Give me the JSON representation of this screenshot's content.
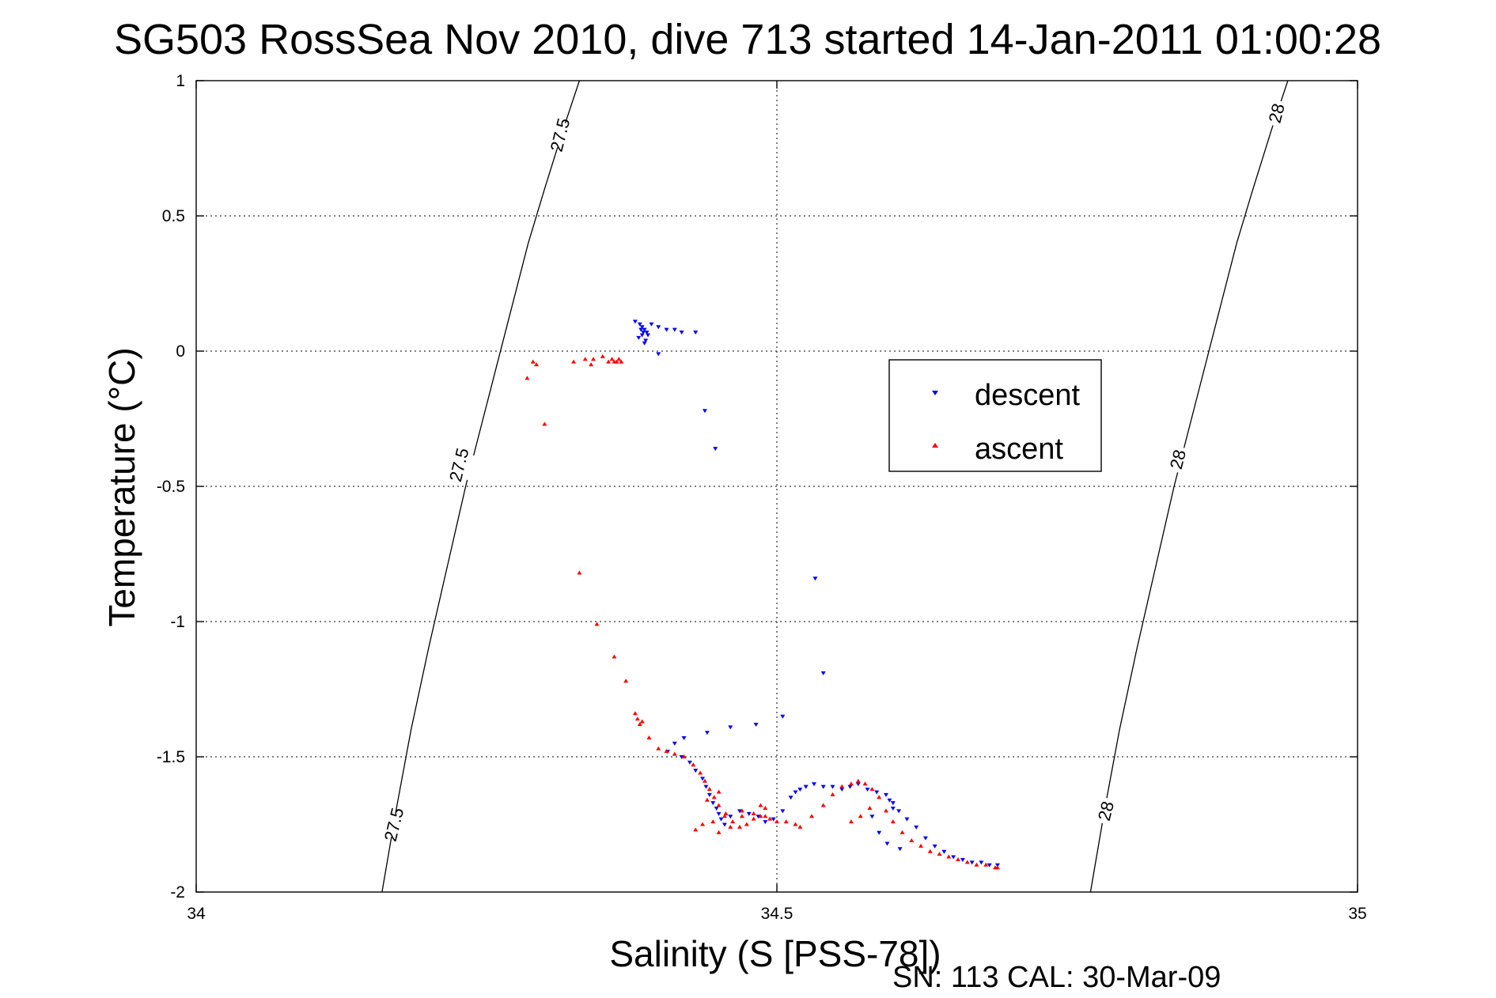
{
  "chart_data": {
    "type": "scatter",
    "title": "SG503 RossSea Nov 2010, dive 713 started 14-Jan-2011 01:00:28",
    "xlabel": "Salinity (S [PSS-78])",
    "ylabel": "Temperature (°C)",
    "footnote": "SN: 113  CAL: 30-Mar-09",
    "xlim": [
      34,
      35
    ],
    "ylim": [
      -2,
      1
    ],
    "xticks": [
      34,
      34.5,
      35
    ],
    "xtick_labels": [
      "34",
      "34.5",
      "35"
    ],
    "yticks": [
      1,
      0.5,
      0,
      -0.5,
      -1,
      -1.5,
      -2
    ],
    "ytick_labels": [
      "1",
      "0.5",
      "0",
      "-0.5",
      "-1",
      "-1.5",
      "-2"
    ],
    "grid": true,
    "legend_position": "center-right",
    "series": [
      {
        "name": "descent",
        "color": "#0000ff",
        "marker": "triangle-down",
        "x": [
          34.378,
          34.382,
          34.384,
          34.386,
          34.388,
          34.384,
          34.381,
          34.385,
          34.389,
          34.387,
          34.383,
          34.386,
          34.392,
          34.398,
          34.405,
          34.412,
          34.418,
          34.43,
          34.398,
          34.438,
          34.447,
          34.505,
          34.533,
          34.54,
          34.482,
          34.46,
          34.44,
          34.42,
          34.412,
          34.406,
          34.418,
          34.425,
          34.43,
          34.436,
          34.439,
          34.442,
          34.445,
          34.448,
          34.45,
          34.452,
          34.455,
          34.46,
          34.468,
          34.476,
          34.484,
          34.49,
          34.497,
          34.505,
          34.512,
          34.516,
          34.52,
          34.525,
          34.532,
          34.54,
          34.548,
          34.556,
          34.563,
          34.57,
          34.578,
          34.586,
          34.594,
          34.6,
          34.605,
          34.612,
          34.62,
          34.628,
          34.636,
          34.644,
          34.652,
          34.66,
          34.668,
          34.676,
          34.683,
          34.69,
          34.597,
          34.6,
          34.582,
          34.588,
          34.595,
          34.606
        ],
        "y": [
          0.11,
          0.1,
          0.09,
          0.08,
          0.07,
          0.06,
          0.05,
          0.07,
          0.06,
          0.04,
          0.08,
          0.03,
          0.1,
          0.09,
          0.08,
          0.08,
          0.07,
          0.07,
          -0.01,
          -0.22,
          -0.36,
          -1.35,
          -0.84,
          -1.19,
          -1.38,
          -1.39,
          -1.41,
          -1.43,
          -1.45,
          -1.48,
          -1.5,
          -1.52,
          -1.55,
          -1.58,
          -1.61,
          -1.64,
          -1.67,
          -1.69,
          -1.71,
          -1.73,
          -1.75,
          -1.72,
          -1.7,
          -1.71,
          -1.72,
          -1.74,
          -1.73,
          -1.7,
          -1.65,
          -1.63,
          -1.62,
          -1.61,
          -1.6,
          -1.61,
          -1.61,
          -1.62,
          -1.61,
          -1.6,
          -1.62,
          -1.63,
          -1.64,
          -1.67,
          -1.7,
          -1.73,
          -1.76,
          -1.8,
          -1.83,
          -1.85,
          -1.87,
          -1.88,
          -1.89,
          -1.89,
          -1.9,
          -1.9,
          -1.66,
          -1.69,
          -1.72,
          -1.78,
          -1.82,
          -1.84
        ]
      },
      {
        "name": "ascent",
        "color": "#ff0000",
        "marker": "triangle-up",
        "x": [
          34.285,
          34.293,
          34.3,
          34.325,
          34.335,
          34.342,
          34.35,
          34.355,
          34.358,
          34.36,
          34.362,
          34.364,
          34.366,
          34.29,
          34.34,
          34.33,
          34.345,
          34.36,
          34.37,
          34.378,
          34.38,
          34.382,
          34.384,
          34.39,
          34.398,
          34.405,
          34.412,
          34.42,
          34.428,
          34.434,
          34.438,
          34.442,
          34.446,
          34.45,
          34.456,
          34.462,
          34.468,
          34.474,
          34.48,
          34.486,
          34.49,
          34.494,
          34.5,
          34.508,
          34.516,
          34.52,
          34.53,
          34.54,
          34.548,
          34.556,
          34.564,
          34.57,
          34.576,
          34.582,
          34.588,
          34.594,
          34.6,
          34.608,
          34.616,
          34.624,
          34.632,
          34.64,
          34.648,
          34.656,
          34.664,
          34.672,
          34.68,
          34.688,
          34.69,
          34.564,
          34.572,
          34.58,
          34.49,
          34.47,
          34.455,
          34.445,
          34.436,
          34.43,
          34.45,
          34.46,
          34.47,
          34.48,
          34.486,
          34.44,
          34.45
        ],
        "y": [
          -0.1,
          -0.05,
          -0.27,
          -0.04,
          -0.03,
          -0.03,
          -0.02,
          -0.04,
          -0.03,
          -0.04,
          -0.04,
          -0.03,
          -0.04,
          -0.04,
          -0.05,
          -0.82,
          -1.01,
          -1.13,
          -1.22,
          -1.34,
          -1.36,
          -1.38,
          -1.37,
          -1.43,
          -1.47,
          -1.48,
          -1.49,
          -1.5,
          -1.53,
          -1.56,
          -1.59,
          -1.62,
          -1.65,
          -1.68,
          -1.71,
          -1.74,
          -1.76,
          -1.75,
          -1.73,
          -1.72,
          -1.72,
          -1.73,
          -1.74,
          -1.74,
          -1.75,
          -1.76,
          -1.72,
          -1.68,
          -1.64,
          -1.61,
          -1.6,
          -1.59,
          -1.6,
          -1.62,
          -1.65,
          -1.7,
          -1.74,
          -1.78,
          -1.81,
          -1.83,
          -1.85,
          -1.86,
          -1.87,
          -1.88,
          -1.89,
          -1.9,
          -1.9,
          -1.91,
          -1.91,
          -1.74,
          -1.72,
          -1.69,
          -1.69,
          -1.7,
          -1.72,
          -1.74,
          -1.75,
          -1.77,
          -1.78,
          -1.76,
          -1.72,
          -1.71,
          -1.68,
          -1.66,
          -1.63
        ]
      }
    ],
    "contours": [
      {
        "level": "27.5",
        "x": [
          34.16,
          34.172,
          34.185,
          34.2,
          34.216,
          34.232,
          34.25,
          34.268,
          34.286,
          34.3,
          34.316,
          34.33
        ],
        "y": [
          -2,
          -1.7,
          -1.4,
          -1.1,
          -0.8,
          -0.5,
          -0.2,
          0.1,
          0.4,
          0.6,
          0.82,
          1
        ],
        "labels": [
          {
            "text": "27.5",
            "x": 34.17,
            "y": -1.75
          },
          {
            "text": "27.5",
            "x": 34.226,
            "y": -0.42
          },
          {
            "text": "27.5",
            "x": 34.313,
            "y": 0.8
          }
        ]
      },
      {
        "level": "28",
        "x": [
          34.77,
          34.782,
          34.795,
          34.81,
          34.826,
          34.842,
          34.86,
          34.878,
          34.896,
          34.91,
          34.926,
          34.94
        ],
        "y": [
          -2,
          -1.7,
          -1.4,
          -1.1,
          -0.8,
          -0.5,
          -0.2,
          0.1,
          0.4,
          0.6,
          0.82,
          1
        ],
        "labels": [
          {
            "text": "28",
            "x": 34.783,
            "y": -1.7
          },
          {
            "text": "28",
            "x": 34.845,
            "y": -0.4
          },
          {
            "text": "28",
            "x": 34.93,
            "y": 0.88
          }
        ]
      }
    ]
  }
}
